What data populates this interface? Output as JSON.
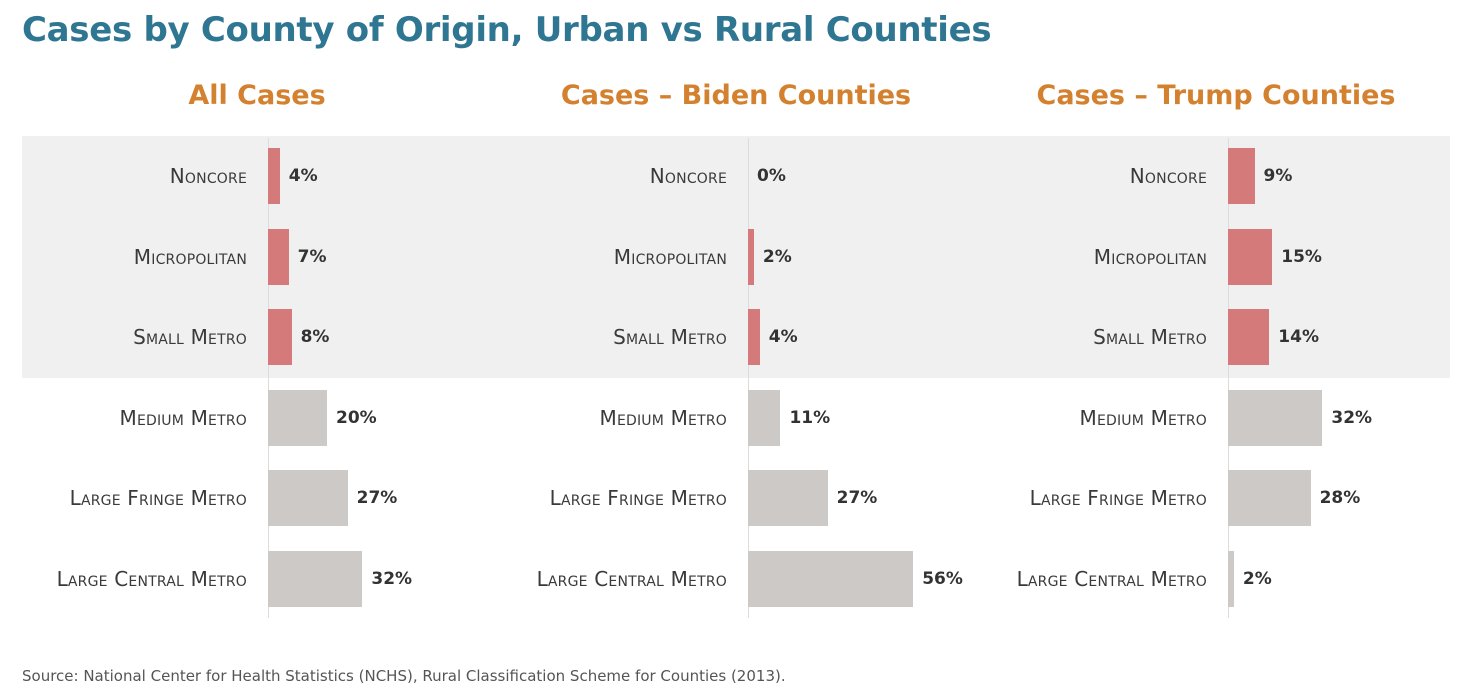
{
  "title": "Cases by County of Origin, Urban vs Rural Counties",
  "source": "Source: National Center for Health Statistics (NCHS), Rural Classification Scheme for Counties (2013).",
  "colors": {
    "title": "#2e7691",
    "panel_title": "#d4812f",
    "rural_bar": "#d47a7a",
    "urban_bar": "#ccc9c6",
    "rural_band": "#f0f0f0"
  },
  "chart_data": [
    {
      "type": "bar",
      "orientation": "horizontal",
      "title": "All Cases",
      "categories": [
        "Noncore",
        "Micropolitan",
        "Small Metro",
        "Medium Metro",
        "Large Fringe Metro",
        "Large Central Metro"
      ],
      "values": [
        4,
        7,
        8,
        20,
        27,
        32
      ],
      "value_labels": [
        "4%",
        "7%",
        "8%",
        "20%",
        "27%",
        "32%"
      ],
      "groups": [
        "rural",
        "rural",
        "rural",
        "urban",
        "urban",
        "urban"
      ],
      "unit": "%"
    },
    {
      "type": "bar",
      "orientation": "horizontal",
      "title": "Cases – Biden Counties",
      "categories": [
        "Noncore",
        "Micropolitan",
        "Small Metro",
        "Medium Metro",
        "Large Fringe Metro",
        "Large Central Metro"
      ],
      "values": [
        0,
        2,
        4,
        11,
        27,
        56
      ],
      "value_labels": [
        "0%",
        "2%",
        "4%",
        "11%",
        "27%",
        "56%"
      ],
      "groups": [
        "rural",
        "rural",
        "rural",
        "urban",
        "urban",
        "urban"
      ],
      "unit": "%"
    },
    {
      "type": "bar",
      "orientation": "horizontal",
      "title": "Cases – Trump Counties",
      "categories": [
        "Noncore",
        "Micropolitan",
        "Small Metro",
        "Medium Metro",
        "Large Fringe Metro",
        "Large Central Metro"
      ],
      "values": [
        9,
        15,
        14,
        32,
        28,
        2
      ],
      "value_labels": [
        "9%",
        "15%",
        "14%",
        "32%",
        "28%",
        "2%"
      ],
      "groups": [
        "rural",
        "rural",
        "rural",
        "urban",
        "urban",
        "urban"
      ],
      "unit": "%"
    }
  ]
}
